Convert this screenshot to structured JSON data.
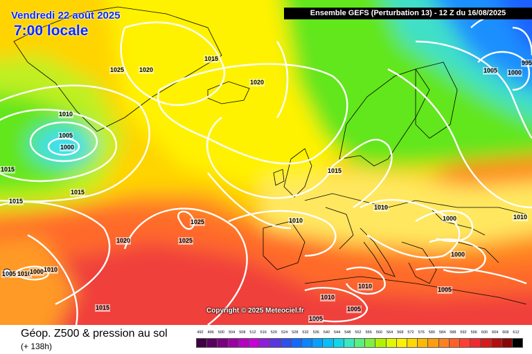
{
  "header": {
    "date": "Vendredi 22 août 2025",
    "local_time": "7:00 locale",
    "run_info": "Ensemble GEFS  (Perturbation 13)  -  12 Z du 16/08/2025"
  },
  "copyright": "Copyright © 2025 Meteociel.fr",
  "footer": {
    "title": "Géop. Z500 & pression au sol",
    "step": "(+ 138h)"
  },
  "map": {
    "colors": {
      "low_cyan": "#3fe0ff",
      "blue_trough": "#1f8fff",
      "green": "#62e61c",
      "yellow": "#fff200",
      "orange": "#ffa41c",
      "red": "#f0403a",
      "isobar": "#ffffff",
      "coast": "#000000"
    },
    "isobar_labels": [
      "1025",
      "1020",
      "1015",
      "1020",
      "1010",
      "1005",
      "1000",
      "1015",
      "1015",
      "1015",
      "1025",
      "1025",
      "1020",
      "1010",
      "1010",
      "1000",
      "1015",
      "1010",
      "1010",
      "1010",
      "1000",
      "1000",
      "1005",
      "1005",
      "1010",
      "1010",
      "1005",
      "1005",
      "1000",
      "995",
      "1015",
      "1005"
    ]
  },
  "legend": {
    "values": [
      "492",
      "496",
      "500",
      "504",
      "508",
      "512",
      "516",
      "520",
      "524",
      "528",
      "532",
      "536",
      "540",
      "544",
      "548",
      "552",
      "556",
      "560",
      "564",
      "568",
      "572",
      "576",
      "580",
      "584",
      "588",
      "592",
      "596",
      "600",
      "604",
      "608",
      "612"
    ],
    "colors": [
      "#3d0040",
      "#5a0060",
      "#7a007f",
      "#9a00a3",
      "#b400c0",
      "#c700d8",
      "#8c1dd8",
      "#5a36e0",
      "#2e50ec",
      "#1568ff",
      "#0a84ff",
      "#08a0ff",
      "#06bff8",
      "#10d6e8",
      "#38e8c0",
      "#5aef80",
      "#7ff040",
      "#b0f200",
      "#e0f800",
      "#fff200",
      "#ffd800",
      "#ffb800",
      "#ff9c10",
      "#ff8020",
      "#ff6028",
      "#ff4030",
      "#f02a30",
      "#d81a1a",
      "#b40e0e",
      "#8a0606",
      "#000000"
    ]
  }
}
